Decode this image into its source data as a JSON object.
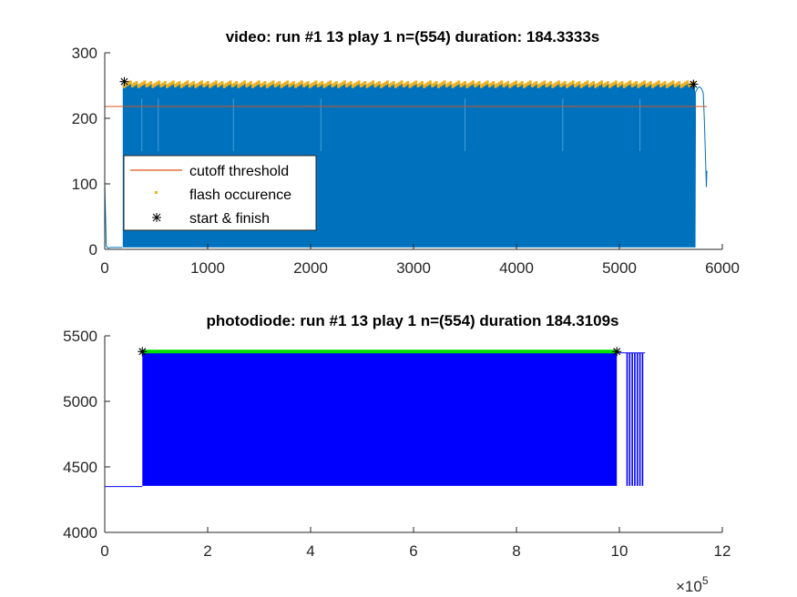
{
  "chart_data": [
    {
      "type": "line",
      "title": "video: run #1 13 play 1 n=(554) duration: 184.3333s",
      "xlabel": "",
      "ylabel": "",
      "xlim": [
        0,
        6000
      ],
      "ylim": [
        0,
        300
      ],
      "x_ticks": [
        "0",
        "1000",
        "2000",
        "3000",
        "4000",
        "5000",
        "6000"
      ],
      "y_ticks": [
        "0",
        "100",
        "200",
        "300"
      ],
      "grid": false,
      "legend_position": "lower-left",
      "series": [
        {
          "name": "",
          "color": "#0072BD",
          "description_points": {
            "x": [
              0,
              15,
              30,
              60,
              100,
              170,
              175,
              5735,
              5740,
              5770,
              5790,
              5810,
              5830,
              5845,
              5850
            ],
            "y": [
              100,
              5,
              2,
              3,
              3,
              3,
              250,
              250,
              3,
              245,
              248,
              240,
              200,
              95,
              120
            ]
          },
          "band": {
            "x_start": 175,
            "x_end": 5735,
            "y_low": 3,
            "y_high": 252
          }
        },
        {
          "name": "cutoff threshold",
          "color": "#D95319",
          "x": [
            0,
            5850
          ],
          "y": [
            218,
            218
          ]
        },
        {
          "name": "flash occurence",
          "color": "#EDB120",
          "marker": "dot",
          "x_range": [
            190,
            5720
          ],
          "y_approx": 252,
          "count": 554
        },
        {
          "name": "start & finish",
          "color": "#000000",
          "marker": "asterisk",
          "x": [
            190,
            5720
          ],
          "y": [
            256,
            252
          ]
        }
      ]
    },
    {
      "type": "line",
      "title": "photodiode: run #1 13 play 1 n=(554) duration 184.3109s",
      "xlabel": "",
      "ylabel": "",
      "xlim": [
        0,
        1200000
      ],
      "ylim": [
        4000,
        5500
      ],
      "x_ticks": [
        "0",
        "2",
        "4",
        "6",
        "8",
        "10",
        "12"
      ],
      "x_exponent_label": "×10",
      "x_exponent_power": "5",
      "y_ticks": [
        "4000",
        "4500",
        "5000",
        "5500"
      ],
      "grid": false,
      "series": [
        {
          "name": "",
          "color": "#0000FF",
          "baseline": 4350,
          "band": {
            "x_start": 73000,
            "x_end": 995000,
            "y_low": 4355,
            "y_high": 5370
          },
          "tail_pulses_x": [
            1015000,
            1020000,
            1025000,
            1030000,
            1035000,
            1040000,
            1045000
          ]
        },
        {
          "name": "",
          "color": "#00E000",
          "x": [
            73000,
            995000
          ],
          "y": [
            5380,
            5380
          ]
        },
        {
          "name": "",
          "color": "#000000",
          "marker": "asterisk",
          "x": [
            73000,
            995000
          ],
          "y": [
            5380,
            5380
          ]
        }
      ]
    }
  ]
}
